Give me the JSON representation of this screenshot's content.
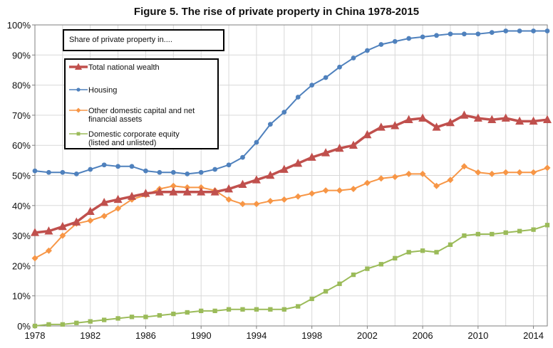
{
  "chart_data": {
    "type": "line",
    "title": "Figure 5. The rise of private property in China 1978-2015",
    "xlabel": "",
    "ylabel": "",
    "xlim": [
      1978,
      2015
    ],
    "ylim": [
      0,
      100
    ],
    "x_ticks": [
      "1978",
      "1982",
      "1986",
      "1990",
      "1994",
      "1998",
      "2002",
      "2006",
      "2010",
      "2014"
    ],
    "y_ticks": [
      "0%",
      "10%",
      "20%",
      "30%",
      "40%",
      "50%",
      "60%",
      "70%",
      "80%",
      "90%",
      "100%"
    ],
    "legend_title": "Share of private property in....",
    "legend_placement": "top-left",
    "x": [
      1978,
      1979,
      1980,
      1981,
      1982,
      1983,
      1984,
      1985,
      1986,
      1987,
      1988,
      1989,
      1990,
      1991,
      1992,
      1993,
      1994,
      1995,
      1996,
      1997,
      1998,
      1999,
      2000,
      2001,
      2002,
      2003,
      2004,
      2005,
      2006,
      2007,
      2008,
      2009,
      2010,
      2011,
      2012,
      2013,
      2014,
      2015
    ],
    "series": [
      {
        "name": "Total national wealth",
        "color": "#c0504d",
        "marker": "triangle",
        "values": [
          31,
          31.5,
          33,
          34.5,
          38,
          41,
          42,
          43,
          44,
          44.5,
          44.5,
          44.5,
          44.5,
          44.5,
          45.5,
          47,
          48.5,
          50,
          52,
          54,
          56,
          57.5,
          59,
          60,
          63.5,
          66,
          66.5,
          68.5,
          69,
          66,
          67.5,
          70,
          69,
          68.5,
          69,
          68,
          68,
          68.5
        ]
      },
      {
        "name": "Housing",
        "color": "#4f81bd",
        "marker": "circle",
        "values": [
          51.5,
          51,
          51,
          50.5,
          52,
          53.5,
          53,
          53,
          51.5,
          51,
          51,
          50.5,
          51,
          52,
          53.5,
          56,
          61,
          67,
          71,
          76,
          80,
          82.5,
          86,
          89,
          91.5,
          93.5,
          94.5,
          95.5,
          96,
          96.5,
          97,
          97,
          97,
          97.5,
          98,
          98,
          98,
          98
        ]
      },
      {
        "name": "Other domestic capital and net financial assets",
        "color": "#f79646",
        "marker": "diamond",
        "values": [
          22.5,
          25,
          30,
          34,
          35,
          36.5,
          39,
          42,
          43.5,
          45.5,
          46.5,
          46,
          46,
          45,
          42,
          40.5,
          40.5,
          41.5,
          42,
          43,
          44,
          45,
          45,
          45.5,
          47.5,
          49,
          49.5,
          50.5,
          50.5,
          46.5,
          48.5,
          53,
          51,
          50.5,
          51,
          51,
          51,
          52.5
        ]
      },
      {
        "name": "Domestic corporate equity (listed and unlisted)",
        "color": "#9bbb59",
        "marker": "square",
        "values": [
          0,
          0.5,
          0.5,
          1,
          1.5,
          2,
          2.5,
          3,
          3,
          3.5,
          4,
          4.5,
          5,
          5,
          5.5,
          5.5,
          5.5,
          5.5,
          5.5,
          6.5,
          9,
          11.5,
          14,
          17,
          19,
          20.5,
          22.5,
          24.5,
          25,
          24.5,
          27,
          30,
          30.5,
          30.5,
          31,
          31.5,
          32,
          33.5
        ]
      }
    ],
    "legend_lines": [
      [
        "Total national wealth"
      ],
      [
        "Housing"
      ],
      [
        "Other domestic capital and net",
        "financial assets"
      ],
      [
        "Domestic corporate equity",
        "(listed and unlisted)"
      ]
    ]
  }
}
